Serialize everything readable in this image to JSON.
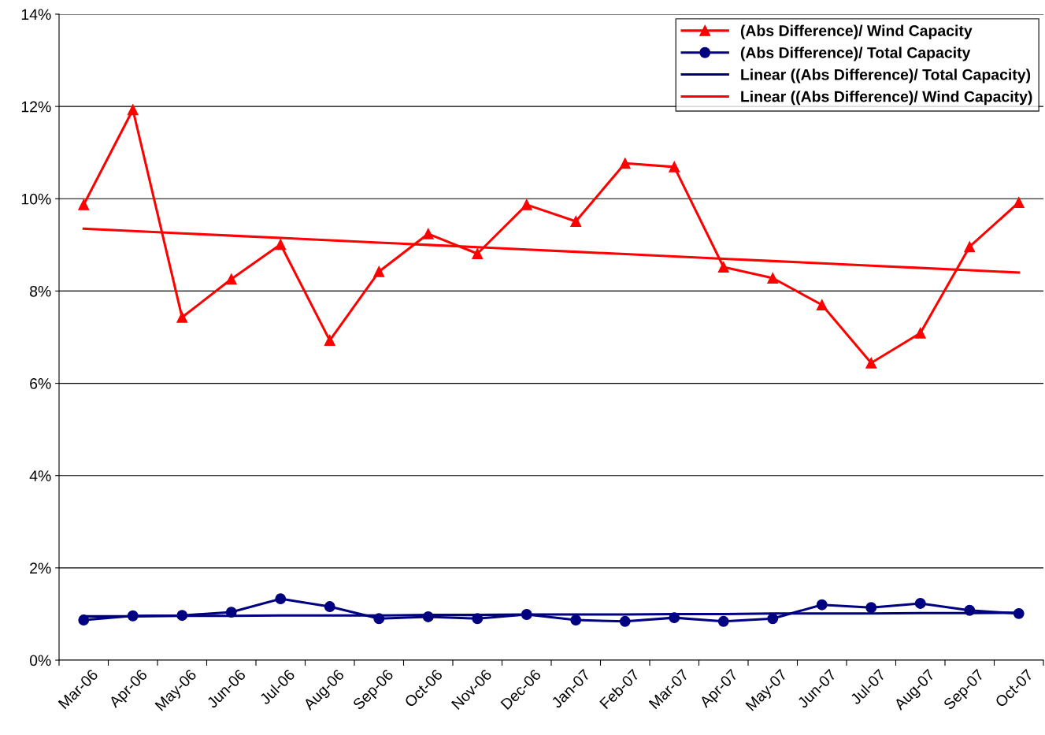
{
  "chart_data": {
    "type": "line",
    "categories": [
      "Mar-06",
      "Apr-06",
      "May-06",
      "Jun-06",
      "Jul-06",
      "Aug-06",
      "Sep-06",
      "Oct-06",
      "Nov-06",
      "Dec-06",
      "Jan-07",
      "Feb-07",
      "Mar-07",
      "Apr-07",
      "May-07",
      "Jun-07",
      "Jul-07",
      "Aug-07",
      "Sep-07",
      "Oct-07"
    ],
    "series": [
      {
        "name": "(Abs Difference)/ Wind Capacity",
        "color": "#ff0000",
        "marker": "triangle",
        "values": [
          9.87,
          11.93,
          7.43,
          8.26,
          9.01,
          6.93,
          8.42,
          9.24,
          8.81,
          9.87,
          9.51,
          10.77,
          10.69,
          8.52,
          8.28,
          7.7,
          6.44,
          7.09,
          8.96,
          9.92
        ]
      },
      {
        "name": "(Abs Difference)/ Total Capacity",
        "color": "#000080",
        "marker": "circle",
        "values": [
          0.87,
          0.96,
          0.97,
          1.04,
          1.33,
          1.16,
          0.9,
          0.94,
          0.9,
          0.99,
          0.87,
          0.84,
          0.92,
          0.84,
          0.9,
          1.2,
          1.14,
          1.23,
          1.08,
          1.01
        ]
      },
      {
        "name": "Linear ((Abs Difference)/ Total Capacity)",
        "color": "#000080",
        "marker": "none",
        "values": [
          0.95,
          0.95,
          0.96,
          0.96,
          0.97,
          0.97,
          0.97,
          0.98,
          0.98,
          0.99,
          0.99,
          0.99,
          1.0,
          1.0,
          1.01,
          1.01,
          1.01,
          1.02,
          1.02,
          1.03
        ]
      },
      {
        "name": "Linear ((Abs Difference)/ Wind Capacity)",
        "color": "#ff0000",
        "marker": "none",
        "values": [
          9.35,
          9.3,
          9.25,
          9.2,
          9.15,
          9.1,
          9.05,
          9.0,
          8.95,
          8.9,
          8.85,
          8.8,
          8.75,
          8.7,
          8.65,
          8.6,
          8.55,
          8.5,
          8.45,
          8.4
        ]
      }
    ],
    "ylim": [
      0,
      14
    ],
    "yticks": [
      {
        "value": 0,
        "label": "0%"
      },
      {
        "value": 2,
        "label": "2%"
      },
      {
        "value": 4,
        "label": "4%"
      },
      {
        "value": 6,
        "label": "6%"
      },
      {
        "value": 8,
        "label": "8%"
      },
      {
        "value": 10,
        "label": "10%"
      },
      {
        "value": 12,
        "label": "12%"
      },
      {
        "value": 14,
        "label": "14%"
      }
    ],
    "grid": "y",
    "legend": "top right",
    "line_style": "solid"
  }
}
